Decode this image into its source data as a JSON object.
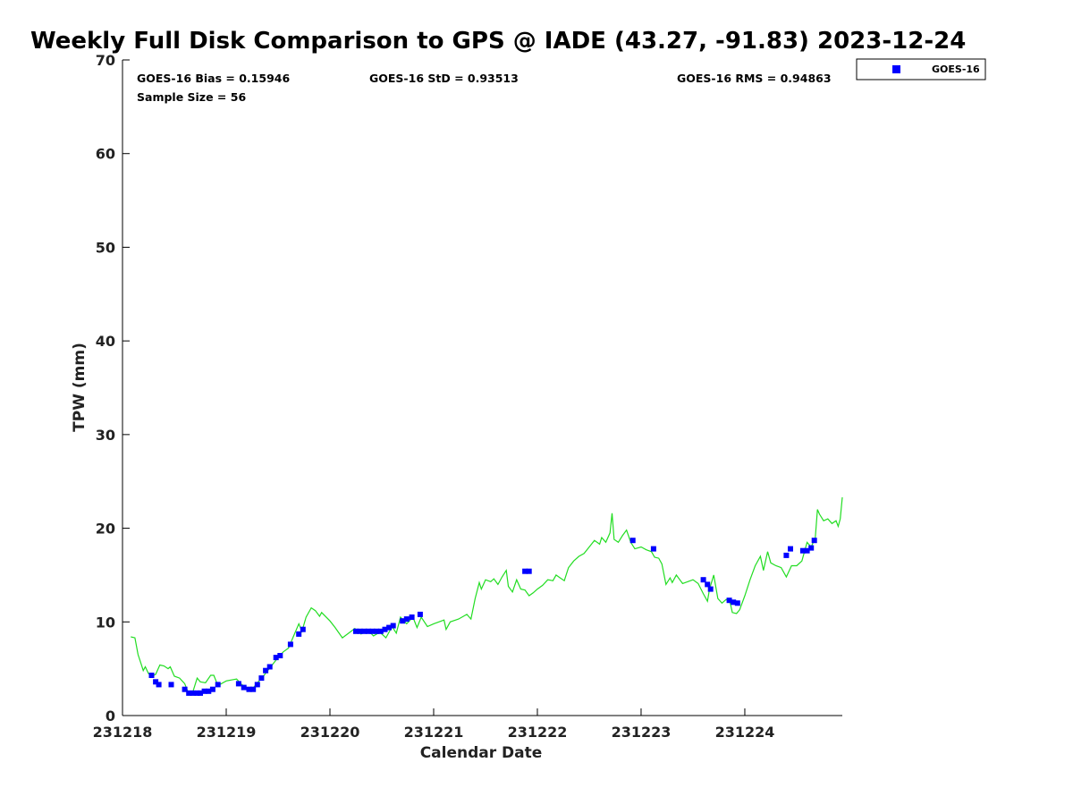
{
  "chart_data": {
    "type": "line",
    "title": "Weekly Full Disk Comparison to GPS @ IADE (43.27, -91.83) 2023-12-24",
    "xlabel": "Calendar Date",
    "ylabel": "TPW (mm)",
    "xlim": [
      231218,
      231224.94
    ],
    "ylim": [
      0,
      70
    ],
    "x_ticks": [
      {
        "value": 231218,
        "label": "231218"
      },
      {
        "value": 231219,
        "label": "231219"
      },
      {
        "value": 231220,
        "label": "231220"
      },
      {
        "value": 231221,
        "label": "231221"
      },
      {
        "value": 231222,
        "label": "231222"
      },
      {
        "value": 231223,
        "label": "231223"
      },
      {
        "value": 231224,
        "label": "231224"
      }
    ],
    "y_ticks": [
      0,
      10,
      20,
      30,
      40,
      50,
      60,
      70
    ],
    "grid": false,
    "stats": {
      "bias": "GOES-16 Bias = 0.15946",
      "std": "GOES-16 StD = 0.93513",
      "rms": "GOES-16 RMS = 0.94863",
      "sample": "Sample Size = 56"
    },
    "legend": {
      "position": "top-right outside",
      "entries": [
        {
          "name": "GOES-16",
          "marker": "square",
          "color": "#0000ff"
        }
      ]
    },
    "series": [
      {
        "kind": "line",
        "color": "#22dd22",
        "points": [
          [
            231218.08,
            8.4
          ],
          [
            231218.12,
            8.3
          ],
          [
            231218.15,
            6.5
          ],
          [
            231218.18,
            5.5
          ],
          [
            231218.2,
            4.8
          ],
          [
            231218.22,
            5.2
          ],
          [
            231218.25,
            4.5
          ],
          [
            231218.28,
            4.2
          ],
          [
            231218.32,
            4.4
          ],
          [
            231218.36,
            5.4
          ],
          [
            231218.4,
            5.3
          ],
          [
            231218.44,
            5.0
          ],
          [
            231218.46,
            5.2
          ],
          [
            231218.5,
            4.2
          ],
          [
            231218.55,
            4.0
          ],
          [
            231218.6,
            3.4
          ],
          [
            231218.64,
            2.3
          ],
          [
            231218.68,
            2.6
          ],
          [
            231218.72,
            4.0
          ],
          [
            231218.75,
            3.6
          ],
          [
            231218.8,
            3.5
          ],
          [
            231218.85,
            4.3
          ],
          [
            231218.88,
            4.3
          ],
          [
            231218.92,
            3.2
          ],
          [
            231219.0,
            3.7
          ],
          [
            231219.05,
            3.8
          ],
          [
            231219.1,
            3.9
          ],
          [
            231219.15,
            3.3
          ],
          [
            231219.2,
            3.0
          ],
          [
            231219.25,
            2.8
          ],
          [
            231219.3,
            3.5
          ],
          [
            231219.35,
            4.1
          ],
          [
            231219.4,
            4.8
          ],
          [
            231219.45,
            5.5
          ],
          [
            231219.5,
            6.2
          ],
          [
            231219.55,
            6.8
          ],
          [
            231219.6,
            7.2
          ],
          [
            231219.65,
            8.5
          ],
          [
            231219.7,
            9.8
          ],
          [
            231219.73,
            9.0
          ],
          [
            231219.77,
            10.5
          ],
          [
            231219.82,
            11.5
          ],
          [
            231219.86,
            11.2
          ],
          [
            231219.9,
            10.6
          ],
          [
            231219.92,
            11.0
          ],
          [
            231220.0,
            10.1
          ],
          [
            231220.05,
            9.4
          ],
          [
            231220.12,
            8.3
          ],
          [
            231220.18,
            8.8
          ],
          [
            231220.24,
            9.3
          ],
          [
            231220.3,
            8.7
          ],
          [
            231220.36,
            9.2
          ],
          [
            231220.42,
            8.5
          ],
          [
            231220.48,
            8.9
          ],
          [
            231220.54,
            8.3
          ],
          [
            231220.6,
            9.5
          ],
          [
            231220.64,
            8.8
          ],
          [
            231220.68,
            10.5
          ],
          [
            231220.74,
            9.8
          ],
          [
            231220.8,
            10.5
          ],
          [
            231220.84,
            9.4
          ],
          [
            231220.88,
            10.5
          ],
          [
            231220.94,
            9.5
          ],
          [
            231221.0,
            9.8
          ],
          [
            231221.05,
            10.0
          ],
          [
            231221.1,
            10.2
          ],
          [
            231221.12,
            9.2
          ],
          [
            231221.16,
            10.0
          ],
          [
            231221.24,
            10.3
          ],
          [
            231221.32,
            10.8
          ],
          [
            231221.36,
            10.3
          ],
          [
            231221.4,
            12.5
          ],
          [
            231221.44,
            14.2
          ],
          [
            231221.46,
            13.5
          ],
          [
            231221.5,
            14.5
          ],
          [
            231221.55,
            14.3
          ],
          [
            231221.58,
            14.6
          ],
          [
            231221.62,
            14.0
          ],
          [
            231221.66,
            14.8
          ],
          [
            231221.7,
            15.5
          ],
          [
            231221.72,
            13.8
          ],
          [
            231221.76,
            13.2
          ],
          [
            231221.8,
            14.5
          ],
          [
            231221.84,
            13.5
          ],
          [
            231221.88,
            13.4
          ],
          [
            231221.92,
            12.8
          ],
          [
            231221.96,
            13.1
          ],
          [
            231222.0,
            13.5
          ],
          [
            231222.05,
            13.9
          ],
          [
            231222.1,
            14.5
          ],
          [
            231222.15,
            14.4
          ],
          [
            231222.18,
            15.0
          ],
          [
            231222.22,
            14.7
          ],
          [
            231222.26,
            14.4
          ],
          [
            231222.3,
            15.8
          ],
          [
            231222.35,
            16.5
          ],
          [
            231222.4,
            17.0
          ],
          [
            231222.45,
            17.3
          ],
          [
            231222.5,
            18.0
          ],
          [
            231222.55,
            18.7
          ],
          [
            231222.6,
            18.3
          ],
          [
            231222.62,
            19.0
          ],
          [
            231222.66,
            18.5
          ],
          [
            231222.7,
            19.5
          ],
          [
            231222.72,
            21.6
          ],
          [
            231222.74,
            18.8
          ],
          [
            231222.78,
            18.5
          ],
          [
            231222.82,
            19.2
          ],
          [
            231222.86,
            19.8
          ],
          [
            231222.9,
            18.5
          ],
          [
            231222.94,
            17.8
          ],
          [
            231223.0,
            18.0
          ],
          [
            231223.05,
            17.7
          ],
          [
            231223.1,
            17.5
          ],
          [
            231223.13,
            16.9
          ],
          [
            231223.17,
            16.8
          ],
          [
            231223.2,
            16.2
          ],
          [
            231223.24,
            14.0
          ],
          [
            231223.28,
            14.7
          ],
          [
            231223.3,
            14.2
          ],
          [
            231223.34,
            15.0
          ],
          [
            231223.4,
            14.1
          ],
          [
            231223.45,
            14.3
          ],
          [
            231223.5,
            14.5
          ],
          [
            231223.55,
            14.1
          ],
          [
            231223.6,
            13.0
          ],
          [
            231223.64,
            12.2
          ],
          [
            231223.66,
            13.5
          ],
          [
            231223.7,
            15.0
          ],
          [
            231223.74,
            12.5
          ],
          [
            231223.78,
            12.0
          ],
          [
            231223.82,
            12.4
          ],
          [
            231223.86,
            12.0
          ],
          [
            231223.88,
            11.0
          ],
          [
            231223.92,
            10.9
          ],
          [
            231223.95,
            11.3
          ],
          [
            231224.0,
            12.8
          ],
          [
            231224.05,
            14.5
          ],
          [
            231224.1,
            16.0
          ],
          [
            231224.15,
            17.0
          ],
          [
            231224.18,
            15.5
          ],
          [
            231224.22,
            17.5
          ],
          [
            231224.25,
            16.3
          ],
          [
            231224.3,
            16.0
          ],
          [
            231224.35,
            15.8
          ],
          [
            231224.4,
            14.8
          ],
          [
            231224.45,
            16.0
          ],
          [
            231224.5,
            16.0
          ],
          [
            231224.55,
            16.5
          ],
          [
            231224.6,
            18.5
          ],
          [
            231224.64,
            18.0
          ],
          [
            231224.68,
            19.0
          ],
          [
            231224.7,
            22.0
          ],
          [
            231224.72,
            21.5
          ],
          [
            231224.76,
            20.8
          ],
          [
            231224.8,
            21.0
          ],
          [
            231224.84,
            20.5
          ],
          [
            231224.88,
            20.8
          ],
          [
            231224.9,
            20.2
          ],
          [
            231224.92,
            21.0
          ],
          [
            231224.94,
            23.3
          ]
        ]
      },
      {
        "kind": "scatter",
        "name": "GOES-16",
        "color": "#0000ff",
        "points": [
          [
            231218.28,
            4.3
          ],
          [
            231218.32,
            3.6
          ],
          [
            231218.35,
            3.3
          ],
          [
            231218.47,
            3.3
          ],
          [
            231218.6,
            2.8
          ],
          [
            231218.64,
            2.4
          ],
          [
            231218.68,
            2.4
          ],
          [
            231218.72,
            2.4
          ],
          [
            231218.75,
            2.4
          ],
          [
            231218.79,
            2.6
          ],
          [
            231218.83,
            2.6
          ],
          [
            231218.87,
            2.8
          ],
          [
            231218.92,
            3.3
          ],
          [
            231219.12,
            3.4
          ],
          [
            231219.17,
            3.0
          ],
          [
            231219.22,
            2.8
          ],
          [
            231219.26,
            2.8
          ],
          [
            231219.3,
            3.3
          ],
          [
            231219.34,
            4.0
          ],
          [
            231219.38,
            4.8
          ],
          [
            231219.42,
            5.2
          ],
          [
            231219.48,
            6.2
          ],
          [
            231219.52,
            6.4
          ],
          [
            231219.62,
            7.6
          ],
          [
            231219.7,
            8.7
          ],
          [
            231219.74,
            9.2
          ],
          [
            231220.25,
            9.0
          ],
          [
            231220.29,
            9.0
          ],
          [
            231220.33,
            9.0
          ],
          [
            231220.37,
            9.0
          ],
          [
            231220.41,
            9.0
          ],
          [
            231220.45,
            9.0
          ],
          [
            231220.49,
            9.0
          ],
          [
            231220.53,
            9.2
          ],
          [
            231220.57,
            9.4
          ],
          [
            231220.61,
            9.6
          ],
          [
            231220.7,
            10.1
          ],
          [
            231220.74,
            10.3
          ],
          [
            231220.79,
            10.5
          ],
          [
            231220.87,
            10.8
          ],
          [
            231221.88,
            15.4
          ],
          [
            231221.92,
            15.4
          ],
          [
            231222.92,
            18.7
          ],
          [
            231223.12,
            17.8
          ],
          [
            231223.6,
            14.5
          ],
          [
            231223.64,
            14.0
          ],
          [
            231223.67,
            13.5
          ],
          [
            231223.85,
            12.3
          ],
          [
            231223.89,
            12.1
          ],
          [
            231223.93,
            12.0
          ],
          [
            231224.4,
            17.1
          ],
          [
            231224.44,
            17.8
          ],
          [
            231224.56,
            17.6
          ],
          [
            231224.6,
            17.6
          ],
          [
            231224.64,
            17.9
          ],
          [
            231224.67,
            18.7
          ]
        ]
      }
    ]
  }
}
